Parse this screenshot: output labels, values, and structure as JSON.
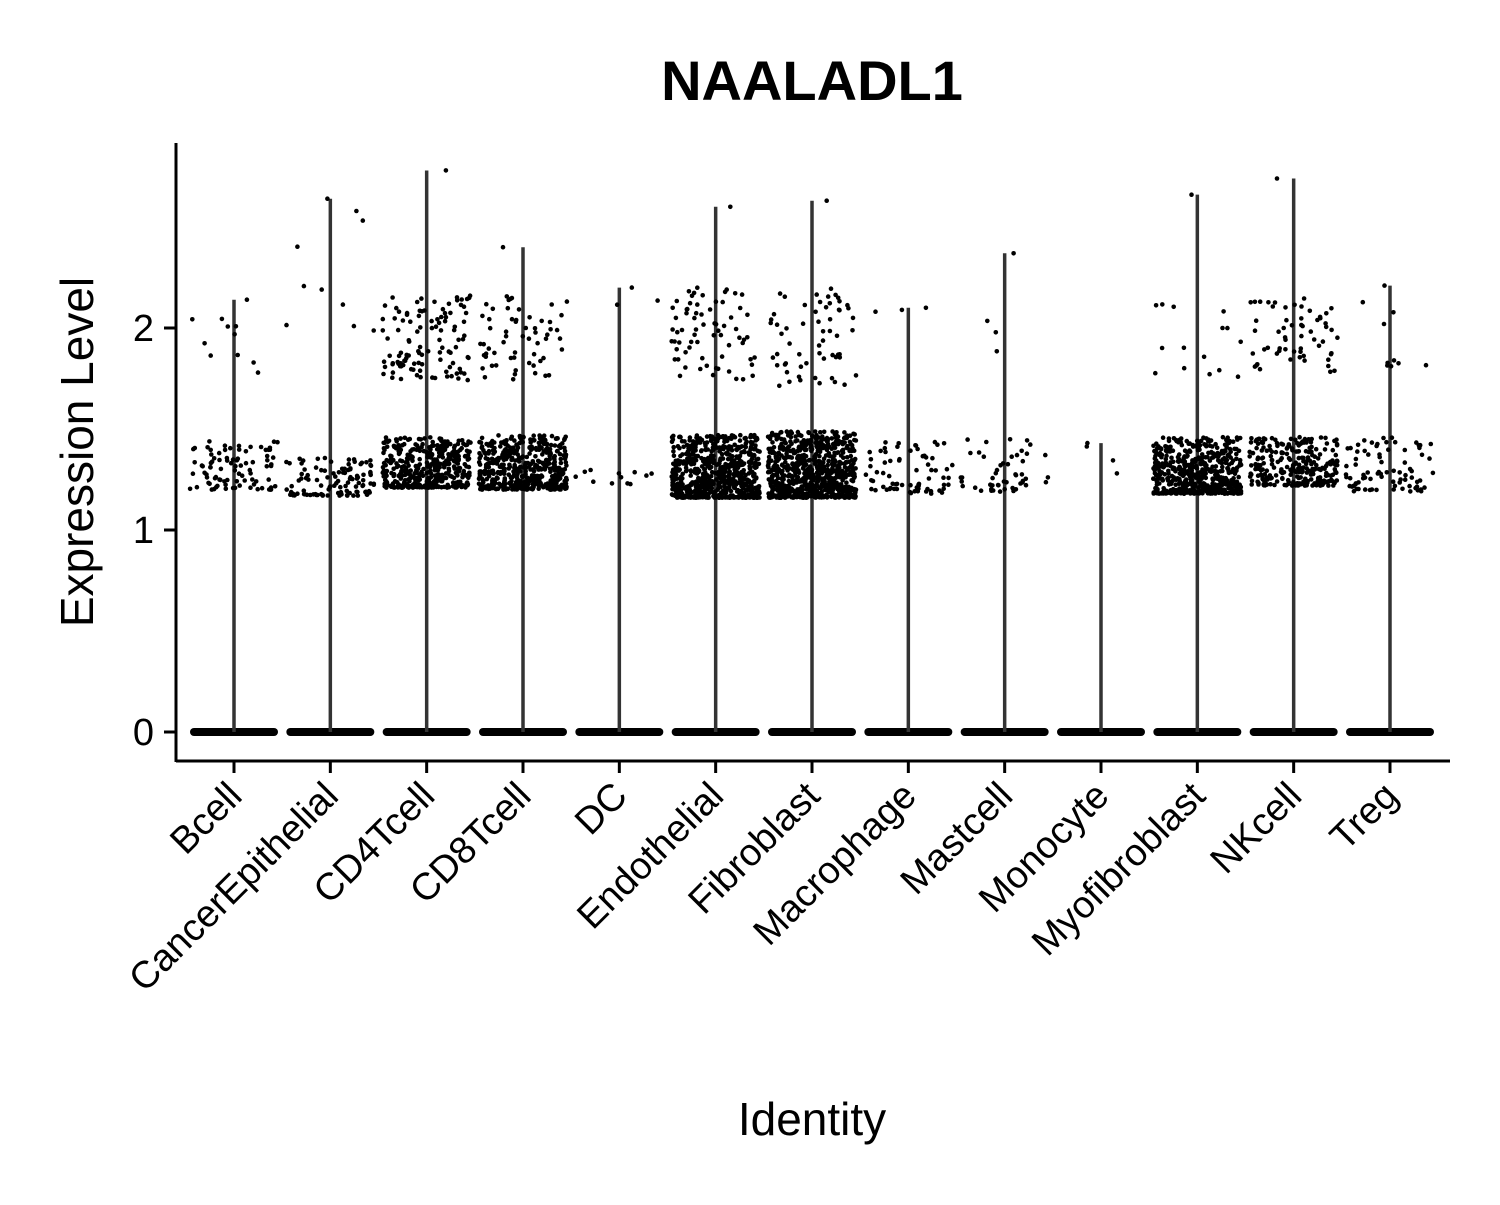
{
  "chart_data": {
    "type": "violin",
    "title": "NAALADL1",
    "xlabel": "Identity",
    "ylabel": "Expression Level",
    "ylim": [
      -0.14,
      2.9
    ],
    "yticks": [
      0,
      1,
      2
    ],
    "grid": false,
    "legend": "none",
    "point_color": "#000000",
    "violin_color": "#333333",
    "categories": [
      "Bcell",
      "CancerEpithelial",
      "CD4Tcell",
      "CD8Tcell",
      "DC",
      "Endothelial",
      "Fibroblast",
      "Macrophage",
      "Mastcell",
      "Monocyte",
      "Myofibroblast",
      "NKcell",
      "Treg"
    ],
    "groups": [
      {
        "name": "Bcell",
        "max": 2.14,
        "cluster_range": [
          1.2,
          1.44
        ],
        "cluster_count": 90,
        "high_range": [
          1.75,
          2.14
        ],
        "high_count": 10
      },
      {
        "name": "CancerEpithelial",
        "max": 2.64,
        "cluster_range": [
          1.17,
          1.36
        ],
        "cluster_count": 110,
        "high_range": [
          1.98,
          2.64
        ],
        "high_count": 9
      },
      {
        "name": "CD4Tcell",
        "max": 2.78,
        "cluster_range": [
          1.21,
          1.46
        ],
        "cluster_count": 420,
        "high_range": [
          1.74,
          2.16
        ],
        "high_count": 110
      },
      {
        "name": "CD8Tcell",
        "max": 2.4,
        "cluster_range": [
          1.2,
          1.47
        ],
        "cluster_count": 500,
        "high_range": [
          1.74,
          2.16
        ],
        "high_count": 60
      },
      {
        "name": "DC",
        "max": 2.2,
        "cluster_range": [
          1.22,
          1.3
        ],
        "cluster_count": 12,
        "high_range": [
          2.1,
          2.2
        ],
        "high_count": 2
      },
      {
        "name": "Endothelial",
        "max": 2.6,
        "cluster_range": [
          1.16,
          1.47
        ],
        "cluster_count": 700,
        "high_range": [
          1.74,
          2.2
        ],
        "high_count": 70
      },
      {
        "name": "Fibroblast",
        "max": 2.63,
        "cluster_range": [
          1.16,
          1.49
        ],
        "cluster_count": 750,
        "high_range": [
          1.7,
          2.2
        ],
        "high_count": 60
      },
      {
        "name": "Macrophage",
        "max": 2.1,
        "cluster_range": [
          1.18,
          1.45
        ],
        "cluster_count": 70,
        "high_range": [
          2.07,
          2.1
        ],
        "high_count": 2
      },
      {
        "name": "Mastcell",
        "max": 2.37,
        "cluster_range": [
          1.19,
          1.45
        ],
        "cluster_count": 50,
        "high_range": [
          1.87,
          2.12
        ],
        "high_count": 3
      },
      {
        "name": "Monocyte",
        "max": 1.43,
        "cluster_range": [
          1.27,
          1.43
        ],
        "cluster_count": 3,
        "high_range": [
          1.43,
          1.43
        ],
        "high_count": 0
      },
      {
        "name": "Myofibroblast",
        "max": 2.66,
        "cluster_range": [
          1.18,
          1.46
        ],
        "cluster_count": 550,
        "high_range": [
          1.74,
          2.12
        ],
        "high_count": 15
      },
      {
        "name": "NKcell",
        "max": 2.74,
        "cluster_range": [
          1.22,
          1.46
        ],
        "cluster_count": 260,
        "high_range": [
          1.78,
          2.15
        ],
        "high_count": 60
      },
      {
        "name": "Treg",
        "max": 2.21,
        "cluster_range": [
          1.19,
          1.46
        ],
        "cluster_count": 80,
        "high_range": [
          1.78,
          2.21
        ],
        "high_count": 9
      }
    ]
  }
}
